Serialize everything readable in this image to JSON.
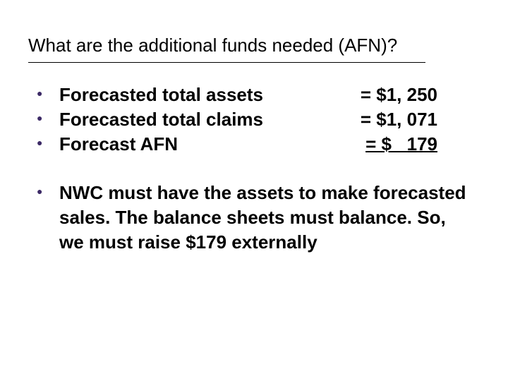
{
  "title": "What are the additional funds needed (AFN)?",
  "items": [
    {
      "label": "Forecasted total assets",
      "value": "   = $1, 250"
    },
    {
      "label": "Forecasted total claims",
      "value": "    = $1, 071"
    },
    {
      "label": "Forecast AFN",
      "value": "= $   179",
      "underline": true
    }
  ],
  "paragraph": "NWC must have the assets to make forecasted sales.  The balance sheets must balance.  So, we must raise $179 externally"
}
